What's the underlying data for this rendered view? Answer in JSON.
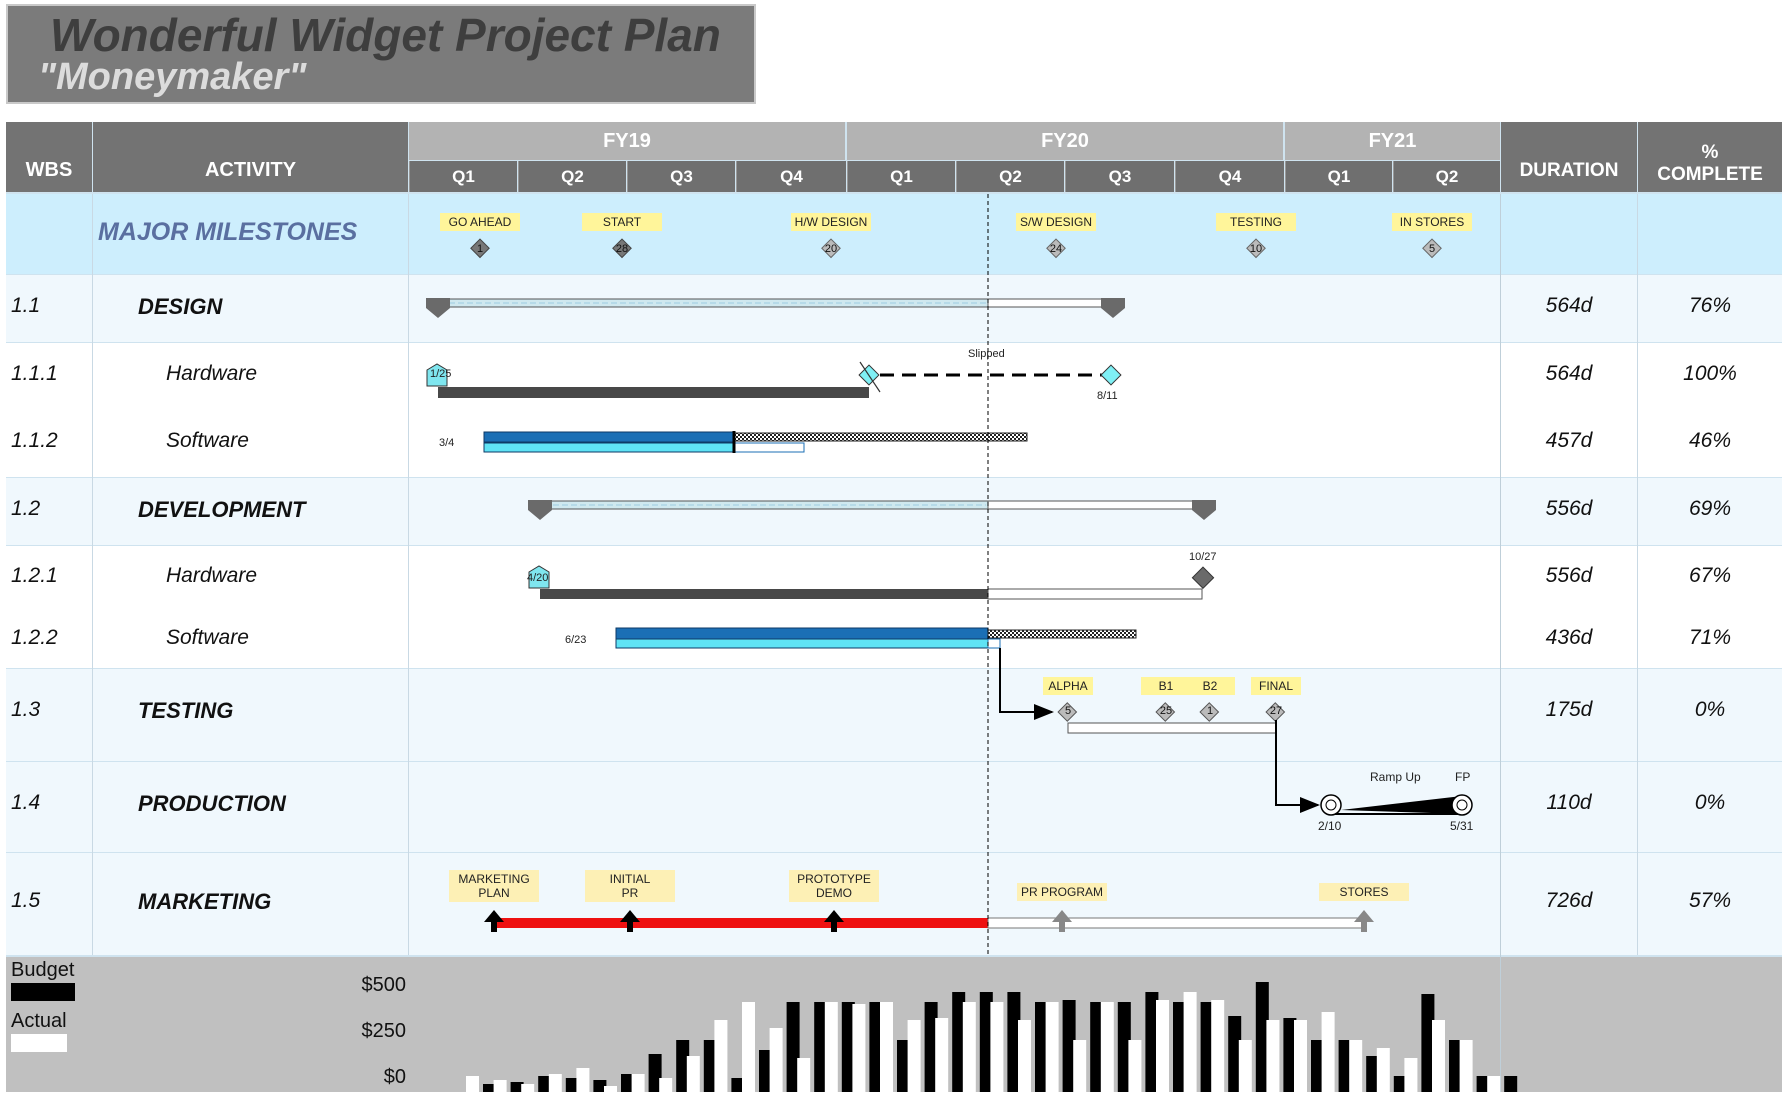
{
  "title": {
    "main": "Wonderful Widget Project Plan",
    "sub": "\"Moneymaker\""
  },
  "header": {
    "wbs": "WBS",
    "activity": "ACTIVITY",
    "duration": "DURATION",
    "pct_line1": "%",
    "pct_line2": "COMPLETE",
    "fiscal_years": [
      "FY19",
      "FY20",
      "FY21"
    ],
    "quarters": [
      "Q1",
      "Q2",
      "Q3",
      "Q4",
      "Q1",
      "Q2",
      "Q3",
      "Q4",
      "Q1",
      "Q2"
    ]
  },
  "milestones_row": {
    "label": "MAJOR MILESTONES",
    "items": [
      {
        "label": "GO AHEAD",
        "day": "1"
      },
      {
        "label": "START",
        "day": "28"
      },
      {
        "label": "H/W DESIGN",
        "day": "20"
      },
      {
        "label": "S/W DESIGN",
        "day": "24"
      },
      {
        "label": "TESTING",
        "day": "10"
      },
      {
        "label": "IN STORES",
        "day": "5"
      }
    ]
  },
  "rows": [
    {
      "wbs": "1.1",
      "activity": "DESIGN",
      "duration": "564d",
      "pct": "76%"
    },
    {
      "wbs": "1.1.1",
      "activity": "Hardware",
      "duration": "564d",
      "pct": "100%"
    },
    {
      "wbs": "1.1.2",
      "activity": "Software",
      "duration": "457d",
      "pct": "46%"
    },
    {
      "wbs": "1.2",
      "activity": "DEVELOPMENT",
      "duration": "556d",
      "pct": "69%"
    },
    {
      "wbs": "1.2.1",
      "activity": "Hardware",
      "duration": "556d",
      "pct": "67%"
    },
    {
      "wbs": "1.2.2",
      "activity": "Software",
      "duration": "436d",
      "pct": "71%"
    },
    {
      "wbs": "1.3",
      "activity": "TESTING",
      "duration": "175d",
      "pct": "0%"
    },
    {
      "wbs": "1.4",
      "activity": "PRODUCTION",
      "duration": "110d",
      "pct": "0%"
    },
    {
      "wbs": "1.5",
      "activity": "MARKETING",
      "duration": "726d",
      "pct": "57%"
    }
  ],
  "annotations": {
    "hw_start": "1/25",
    "slipped": "Slipped",
    "hw_end": "8/11",
    "sw_start": "3/4",
    "dev_hw_start": "4/20",
    "dev_hw_end": "10/27",
    "dev_sw_start": "6/23",
    "testing_items": [
      {
        "label": "ALPHA",
        "day": "5"
      },
      {
        "label": "B1",
        "day": "25"
      },
      {
        "label": "B2",
        "day": "1"
      },
      {
        "label": "FINAL",
        "day": "27"
      }
    ],
    "prod_ramp": "Ramp Up",
    "prod_fp": "FP",
    "prod_start": "2/10",
    "prod_end": "5/31",
    "marketing_items": [
      {
        "line1": "MARKETING",
        "line2": "PLAN"
      },
      {
        "line1": "INITIAL",
        "line2": "PR"
      },
      {
        "line1": "PROTOTYPE",
        "line2": "DEMO"
      },
      {
        "line1": "PR PROGRAM",
        "line2": ""
      },
      {
        "line1": "STORES",
        "line2": ""
      }
    ]
  },
  "budget": {
    "legend_budget": "Budget",
    "legend_actual": "Actual",
    "axis_labels": [
      "$500",
      "$250",
      "$0"
    ]
  },
  "colors": {
    "header_dark": "#737373",
    "milestone_label": "#fff59a",
    "software_bar": "#1b6fb5",
    "software_light": "#5fe3f5",
    "marketing_bar": "#ee1111"
  }
}
